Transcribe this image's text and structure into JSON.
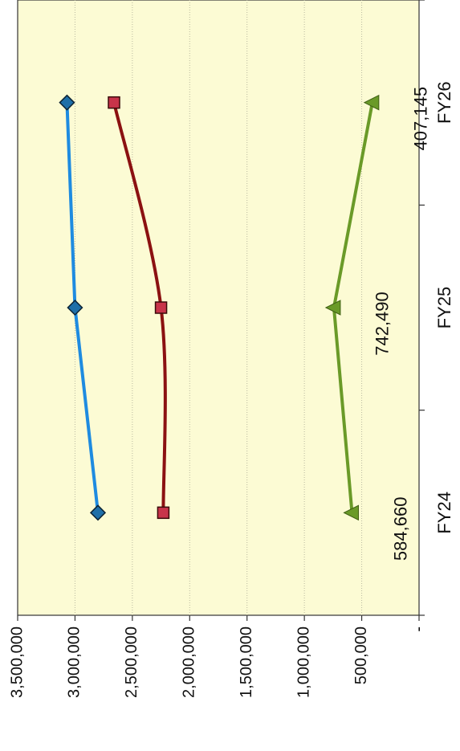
{
  "chart_data": {
    "type": "line",
    "orientation": "rotated-90-clockwise",
    "categories": [
      "FY24",
      "FY25",
      "FY26"
    ],
    "series": [
      {
        "values": [
          2800000,
          3000000,
          3070000
        ],
        "color": "#1e8be0",
        "marker": "diamond",
        "marker_color": "#1f6fa8",
        "smooth": false
      },
      {
        "values": [
          2230000,
          2250000,
          2660000
        ],
        "color": "#8b1111",
        "marker": "square",
        "marker_color": "#c8344a",
        "smooth": true
      },
      {
        "values": [
          584660,
          742490,
          407145
        ],
        "color": "#6a9a28",
        "marker": "triangle",
        "marker_color": "#6a9a28",
        "smooth": false,
        "labels": [
          "584,660",
          "742,490",
          "407,145"
        ]
      }
    ],
    "ylim": [
      0,
      3500000
    ],
    "yticks": [
      0,
      500000,
      1000000,
      1500000,
      2000000,
      2500000,
      3000000,
      3500000
    ],
    "ytick_labels": [
      "-",
      "500,000",
      "1,000,000",
      "1,500,000",
      "2,000,000",
      "2,500,000",
      "3,000,000",
      "3,500,000"
    ],
    "grid": true,
    "plot_background": "#fcfbd4"
  }
}
